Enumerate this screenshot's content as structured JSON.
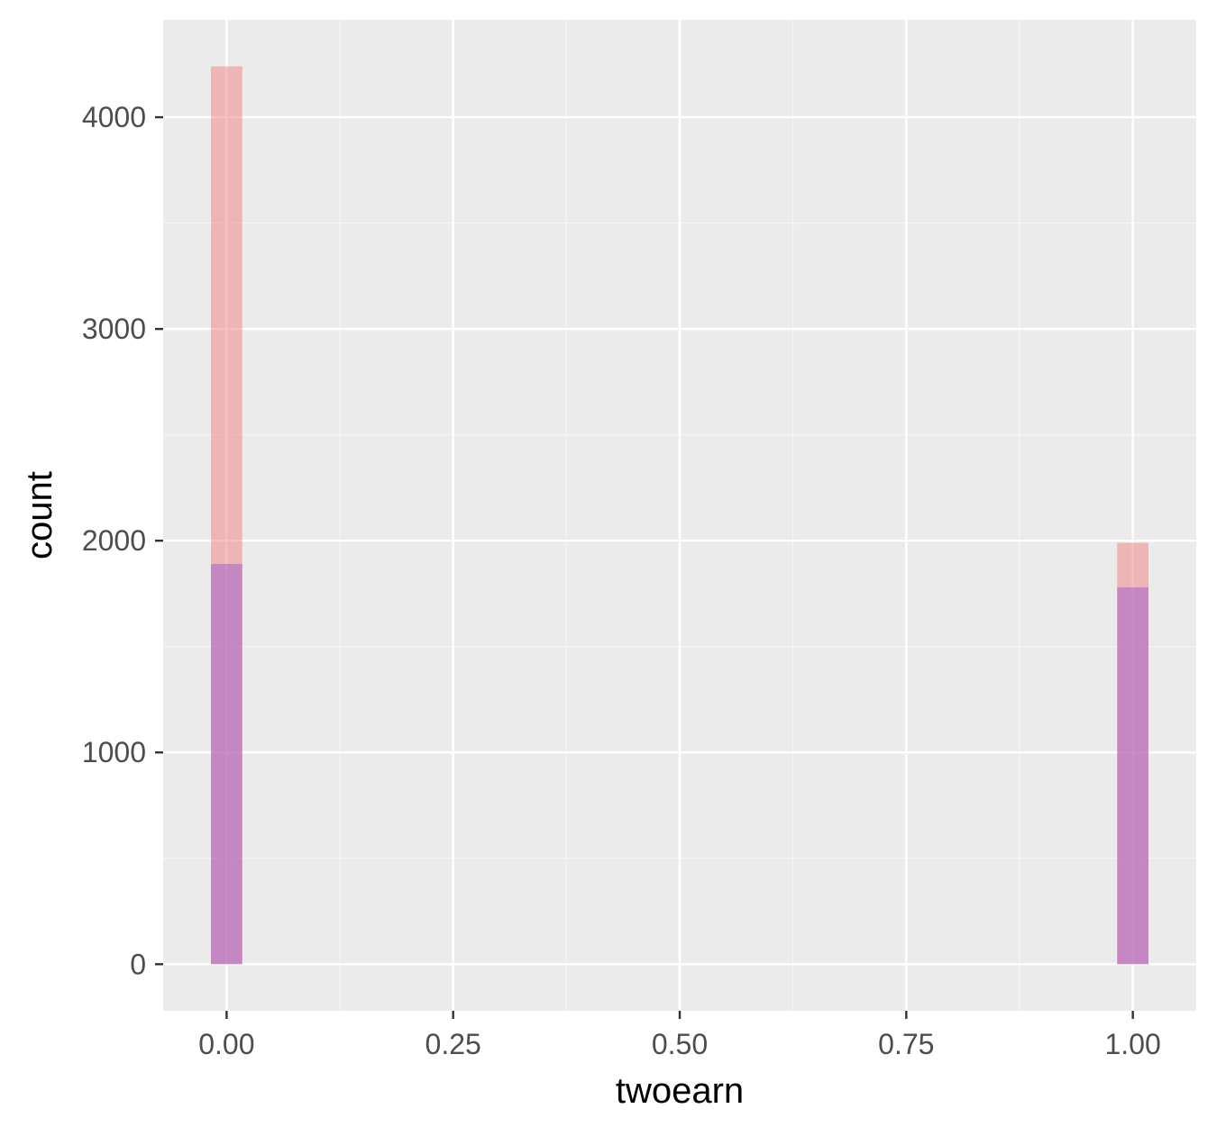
{
  "chart_data": {
    "type": "bar",
    "xlabel": "twoearn",
    "ylabel": "count",
    "xlim": [
      -0.07,
      1.07
    ],
    "ylim": [
      -220,
      4460
    ],
    "x_ticks": [
      0.0,
      0.25,
      0.5,
      0.75,
      1.0
    ],
    "x_tick_labels": [
      "0.00",
      "0.25",
      "0.50",
      "0.75",
      "1.00"
    ],
    "y_ticks": [
      0,
      1000,
      2000,
      3000,
      4000
    ],
    "y_tick_labels": [
      "0",
      "1000",
      "2000",
      "3000",
      "4000"
    ],
    "grid": true,
    "bin_width": 0.0345,
    "series": [
      {
        "color": "#f08080",
        "opacity": 0.5,
        "x": [
          0.0,
          1.0
        ],
        "values": [
          4240,
          1990
        ]
      },
      {
        "color": "#9b59d0",
        "opacity": 0.5,
        "x": [
          0.0,
          1.0
        ],
        "values": [
          1890,
          1780
        ]
      }
    ]
  },
  "colors": {
    "panel_background": "#ebebeb",
    "grid_major": "#ffffff",
    "grid_minor": "#f5f5f5",
    "tick_mark": "#333333"
  }
}
